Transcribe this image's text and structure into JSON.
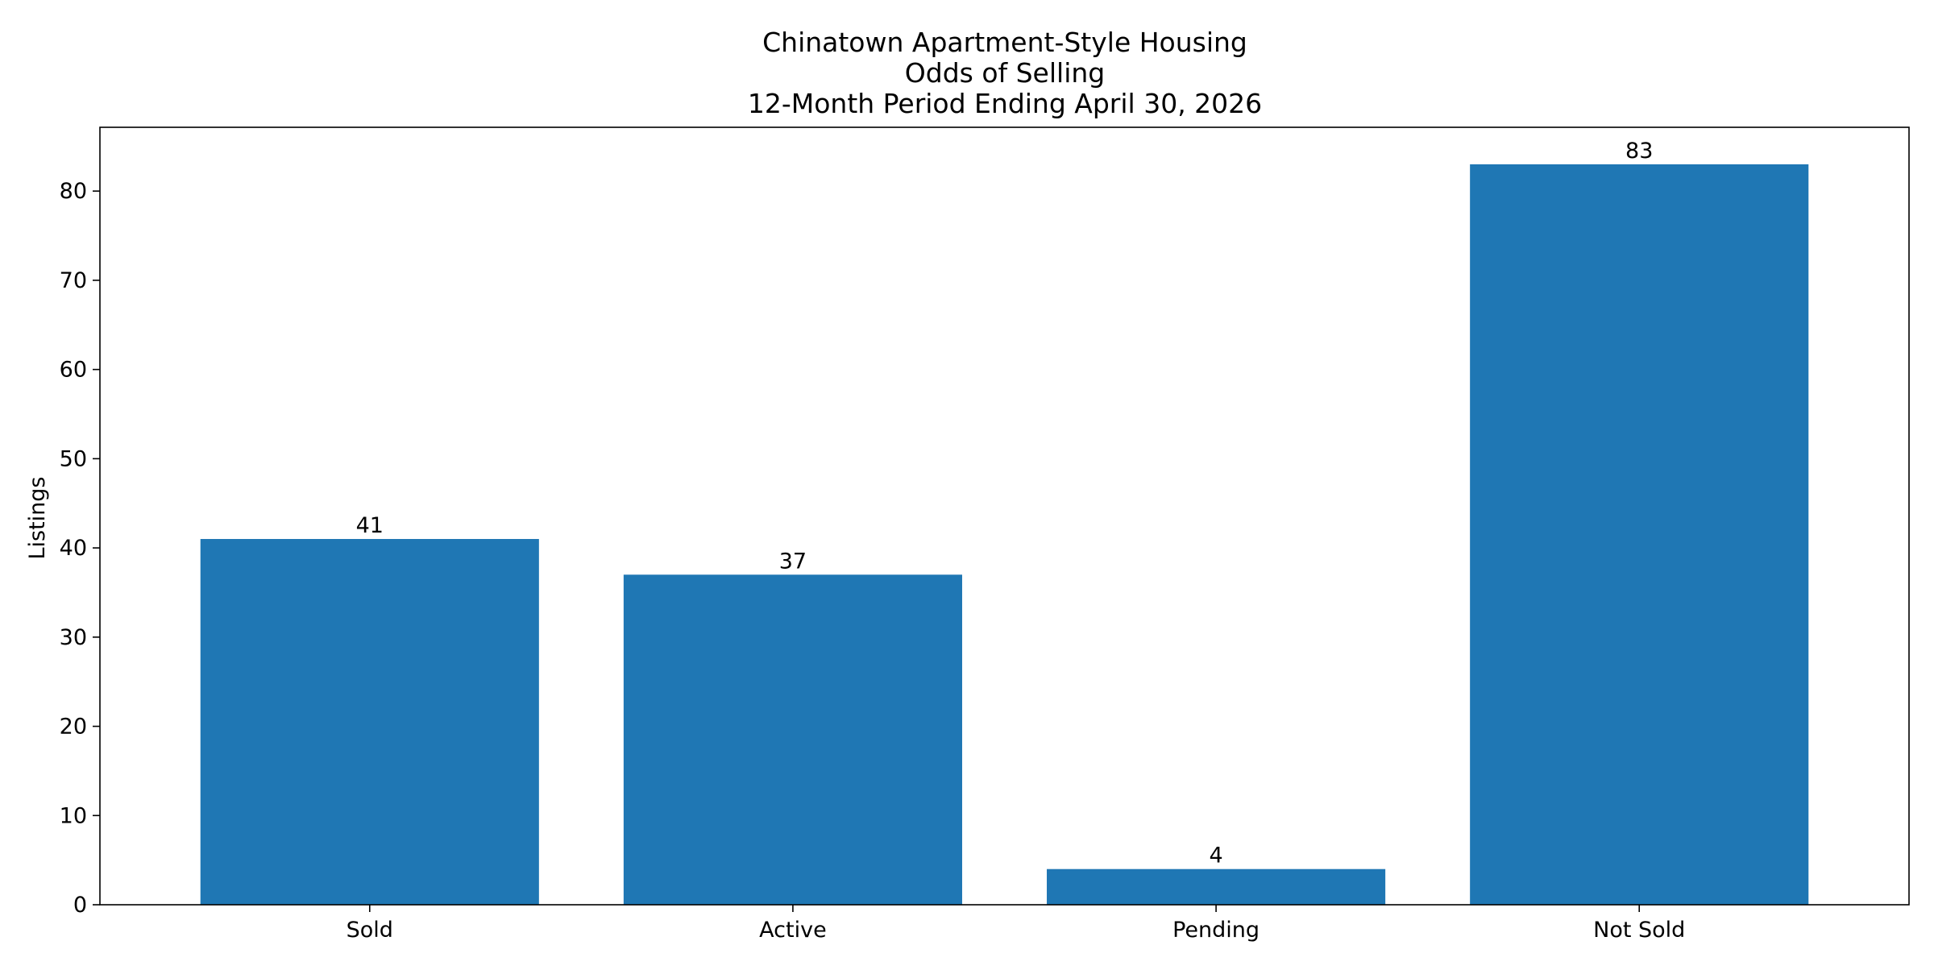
{
  "chart_data": {
    "type": "bar",
    "title": [
      "Chinatown Apartment-Style Housing",
      "Odds of Selling",
      "12-Month Period Ending April 30, 2026"
    ],
    "xlabel": "",
    "ylabel": "Listings",
    "categories": [
      "Sold",
      "Active",
      "Pending",
      "Not Sold"
    ],
    "values": [
      41,
      37,
      4,
      83
    ],
    "data_labels": [
      "41",
      "37",
      "4",
      "83"
    ],
    "ylim": [
      0,
      87.15
    ],
    "yticks": [
      0,
      10,
      20,
      30,
      40,
      50,
      60,
      70,
      80
    ],
    "grid": false,
    "legend": "none",
    "bar_color": "#1f77b4"
  }
}
